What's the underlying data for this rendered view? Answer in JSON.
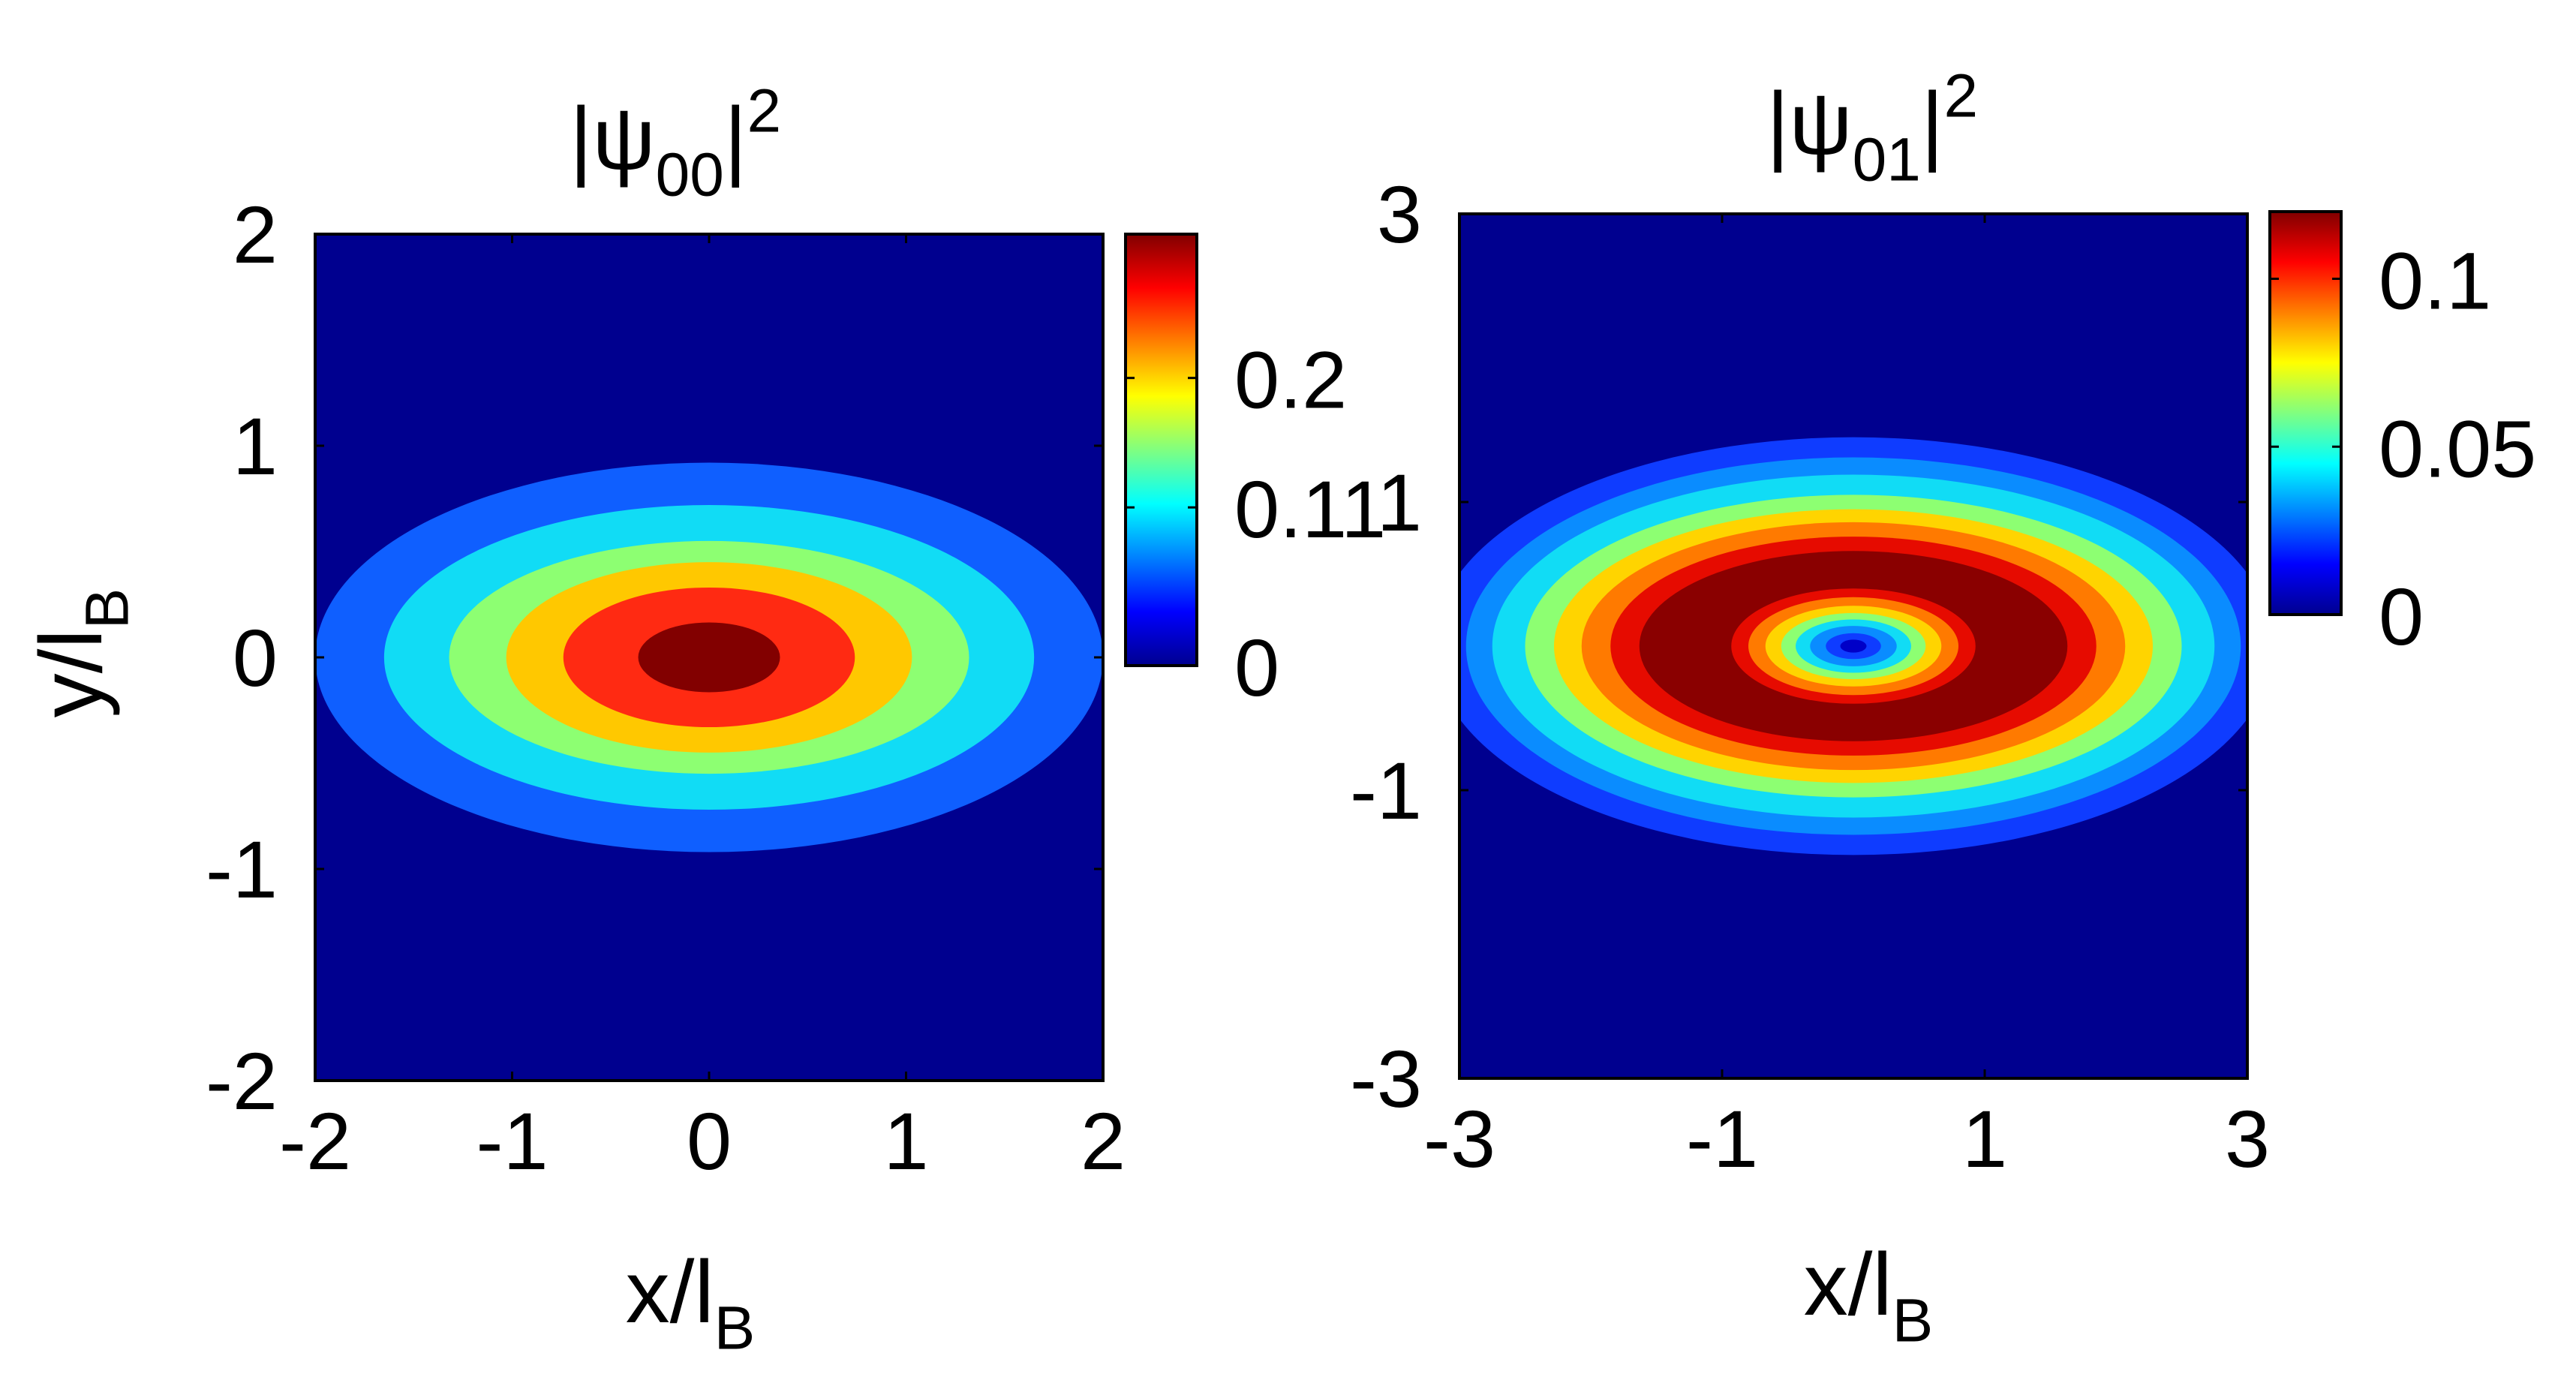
{
  "chart_data": [
    {
      "type": "heatmap",
      "title": {
        "base": "|ψ",
        "sub": "00",
        "mid": "|",
        "sup": "2"
      },
      "xlabel": {
        "base": "x/l",
        "sub": "B"
      },
      "ylabel": {
        "base": "y/l",
        "sub": "B"
      },
      "xlim": [
        -2,
        2
      ],
      "ylim": [
        -2,
        2
      ],
      "xticks": [
        -2,
        -1,
        0,
        1,
        2
      ],
      "yticks": [
        -2,
        -1,
        0,
        1,
        2
      ],
      "xtick_labels": [
        "-2",
        "-1",
        "0",
        "1",
        "2"
      ],
      "ytick_labels": [
        "-2",
        "-1",
        "0",
        "1",
        "2"
      ],
      "background_color": "#00008f",
      "contours": [
        {
          "rx": 2.0,
          "ry": 0.92,
          "color": "#0f5fff"
        },
        {
          "rx": 1.65,
          "ry": 0.72,
          "color": "#11dcf5"
        },
        {
          "rx": 1.32,
          "ry": 0.55,
          "color": "#8dff72"
        },
        {
          "rx": 1.03,
          "ry": 0.45,
          "color": "#ffc800"
        },
        {
          "rx": 0.74,
          "ry": 0.33,
          "color": "#ff2a12"
        },
        {
          "rx": 0.36,
          "ry": 0.165,
          "color": "#820000"
        }
      ],
      "colorbar": {
        "min": 0,
        "max": 0.3,
        "ticks": [
          0,
          0.11,
          0.2
        ],
        "tick_labels": [
          "0",
          "0.11",
          "0.2"
        ]
      }
    },
    {
      "type": "heatmap",
      "title": {
        "base": "|ψ",
        "sub": "01",
        "mid": "|",
        "sup": "2"
      },
      "xlabel": {
        "base": "x/l",
        "sub": "B"
      },
      "ylabel": {
        "base": "",
        "sub": ""
      },
      "xlim": [
        -3,
        3
      ],
      "ylim": [
        -3,
        3
      ],
      "xticks": [
        -3,
        -1,
        1,
        3
      ],
      "yticks": [
        -3,
        -1,
        1,
        3
      ],
      "xtick_labels": [
        "-3",
        "-1",
        "1",
        "3"
      ],
      "ytick_labels": [
        "-3",
        "-1",
        "1",
        "3"
      ],
      "background_color": "#00008f",
      "contours": [
        {
          "rx": 3.2,
          "ry": 1.45,
          "color": "#0f3cff"
        },
        {
          "rx": 2.95,
          "ry": 1.31,
          "color": "#0a8cff"
        },
        {
          "rx": 2.75,
          "ry": 1.19,
          "color": "#11dcf5"
        },
        {
          "rx": 2.5,
          "ry": 1.05,
          "color": "#8dff72"
        },
        {
          "rx": 2.28,
          "ry": 0.95,
          "color": "#ffd400"
        },
        {
          "rx": 2.07,
          "ry": 0.86,
          "color": "#ff7a00"
        },
        {
          "rx": 1.85,
          "ry": 0.76,
          "color": "#e60b00"
        },
        {
          "rx": 1.63,
          "ry": 0.66,
          "color": "#8a0000"
        },
        {
          "rx": 0.93,
          "ry": 0.4,
          "color": "#e60b00"
        },
        {
          "rx": 0.8,
          "ry": 0.34,
          "color": "#ff7a00"
        },
        {
          "rx": 0.67,
          "ry": 0.28,
          "color": "#ffd400"
        },
        {
          "rx": 0.55,
          "ry": 0.23,
          "color": "#8dff72"
        },
        {
          "rx": 0.44,
          "ry": 0.185,
          "color": "#11dcf5"
        },
        {
          "rx": 0.33,
          "ry": 0.14,
          "color": "#0a8cff"
        },
        {
          "rx": 0.21,
          "ry": 0.09,
          "color": "#0f3cff"
        },
        {
          "rx": 0.1,
          "ry": 0.045,
          "color": "#0000c8"
        }
      ],
      "colorbar": {
        "min": 0,
        "max": 0.12,
        "ticks": [
          0,
          0.05,
          0.1
        ],
        "tick_labels": [
          "0",
          "0.05",
          "0.1"
        ]
      }
    }
  ]
}
